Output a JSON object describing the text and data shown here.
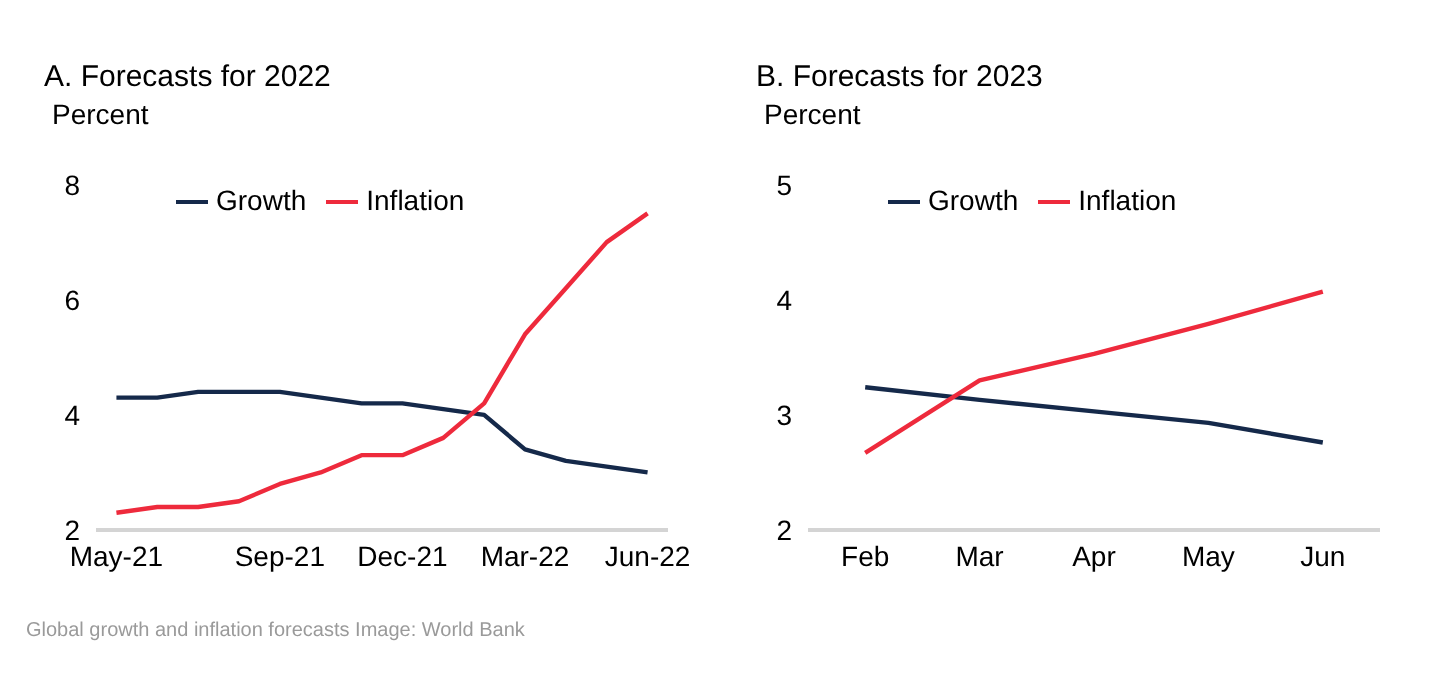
{
  "chart_data": [
    {
      "type": "line",
      "title": "A. Forecasts for 2022",
      "ylabel": "Percent",
      "categories": [
        "May-21",
        null,
        null,
        null,
        "Sep-21",
        null,
        null,
        "Dec-21",
        null,
        null,
        "Mar-22",
        null,
        null,
        "Jun-22"
      ],
      "series": [
        {
          "name": "Growth",
          "color": "#15294a",
          "values": [
            4.3,
            4.3,
            4.4,
            4.4,
            4.4,
            4.3,
            4.2,
            4.2,
            4.1,
            4.0,
            3.4,
            3.2,
            3.1,
            3.0
          ]
        },
        {
          "name": "Inflation",
          "color": "#ee2a3c",
          "values": [
            2.3,
            2.4,
            2.4,
            2.5,
            2.8,
            3.0,
            3.3,
            3.3,
            3.6,
            4.2,
            5.4,
            6.2,
            7.0,
            7.5
          ]
        }
      ],
      "ylim": [
        2,
        8
      ],
      "yticks": [
        2,
        4,
        6,
        8
      ],
      "grid": false,
      "legend": "top",
      "marker": "none",
      "line_style": "solid",
      "annotations": [
        "Global growth and inflation forecasts Image: World Bank"
      ]
    },
    {
      "type": "line",
      "title": "B. Forecasts for 2023",
      "ylabel": "Percent",
      "categories": [
        "Feb",
        "Mar",
        "Apr",
        "May",
        "Jun"
      ],
      "series": [
        {
          "name": "Growth",
          "color": "#15294a",
          "values": [
            3.24,
            3.13,
            3.03,
            2.93,
            2.76
          ]
        },
        {
          "name": "Inflation",
          "color": "#ee2a3c",
          "values": [
            2.67,
            3.3,
            3.53,
            3.79,
            4.07
          ]
        }
      ],
      "ylim": [
        2,
        5
      ],
      "yticks": [
        2,
        3,
        4,
        5
      ],
      "grid": false,
      "legend": "top",
      "marker": "none",
      "line_style": "solid"
    }
  ]
}
